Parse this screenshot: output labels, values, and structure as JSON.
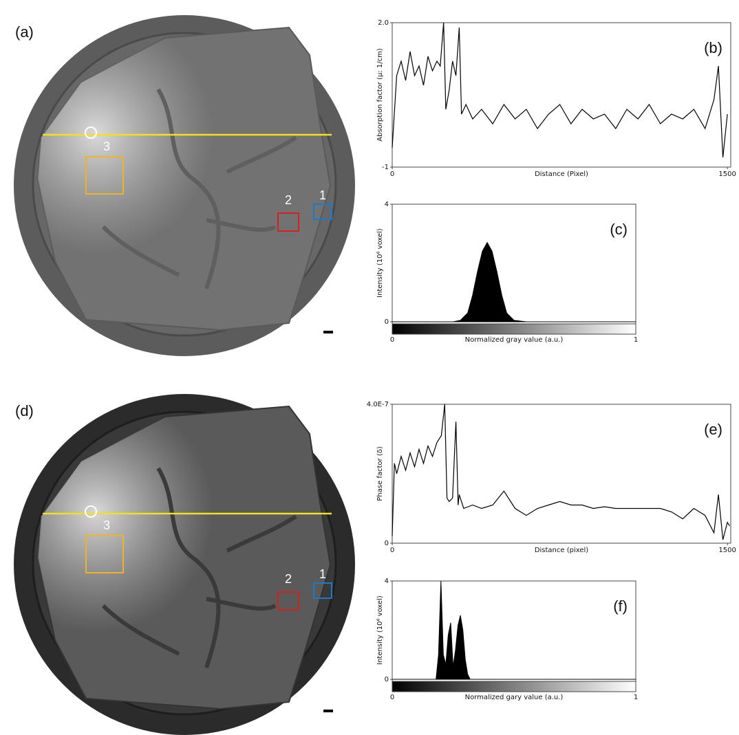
{
  "figure": {
    "top_image": {
      "label": "(a)",
      "roi_labels": [
        "1",
        "2",
        "3"
      ]
    },
    "bottom_image": {
      "label": "(d)",
      "roi_labels": [
        "1",
        "2",
        "3"
      ]
    }
  },
  "chart_data": [
    {
      "type": "line",
      "panel_label": "(b)",
      "y_label": "Absorption factor (μ: 1/cm)",
      "x_label": "Distance (Pixel)",
      "color": "#000000",
      "x": [
        0,
        20,
        40,
        60,
        80,
        100,
        120,
        140,
        160,
        180,
        200,
        215,
        230,
        240,
        255,
        270,
        285,
        300,
        310,
        330,
        360,
        400,
        450,
        500,
        550,
        600,
        650,
        700,
        750,
        800,
        850,
        900,
        950,
        1000,
        1050,
        1100,
        1150,
        1200,
        1250,
        1300,
        1350,
        1400,
        1440,
        1460,
        1480,
        1500
      ],
      "values": [
        -0.6,
        0.9,
        1.2,
        0.8,
        1.4,
        0.9,
        1.1,
        0.7,
        1.3,
        1.0,
        1.2,
        1.1,
        2.0,
        0.2,
        0.6,
        1.2,
        0.9,
        1.9,
        0.1,
        0.3,
        0.0,
        0.2,
        -0.1,
        0.3,
        0.0,
        0.2,
        -0.2,
        0.1,
        0.3,
        -0.1,
        0.2,
        0.0,
        0.1,
        -0.2,
        0.2,
        0.0,
        0.3,
        -0.1,
        0.1,
        0.0,
        0.2,
        -0.2,
        0.4,
        1.1,
        -0.8,
        0.1
      ],
      "xlim": [
        0,
        1515
      ],
      "ylim": [
        -1,
        2
      ],
      "xticks": [
        0,
        1500
      ],
      "yticks": [
        {
          "value": 2,
          "label": "2.0"
        },
        -1
      ]
    },
    {
      "type": "area",
      "panel_label": "(c)",
      "y_label": "Intensity (10⁶ voxel)",
      "x_label": "Normalized gray value (a.u.)",
      "color": "#000000",
      "x": [
        0,
        0.25,
        0.28,
        0.31,
        0.33,
        0.35,
        0.37,
        0.39,
        0.41,
        0.43,
        0.45,
        0.47,
        0.5,
        0.55,
        1
      ],
      "values": [
        0,
        0,
        0.05,
        0.3,
        0.9,
        1.7,
        2.4,
        2.7,
        2.4,
        1.7,
        0.9,
        0.3,
        0.05,
        0,
        0
      ],
      "xlim": [
        0,
        1
      ],
      "ylim": [
        0,
        4
      ],
      "xticks": [
        0,
        1
      ],
      "yticks": [
        0,
        4
      ]
    },
    {
      "type": "line",
      "panel_label": "(e)",
      "y_label": "Phase factor (δ)",
      "x_label": "Distance (pixel)",
      "color": "#000000",
      "x": [
        0,
        10,
        20,
        40,
        60,
        80,
        100,
        120,
        140,
        160,
        180,
        200,
        220,
        235,
        245,
        255,
        270,
        285,
        295,
        300,
        320,
        360,
        400,
        450,
        500,
        550,
        600,
        650,
        700,
        750,
        800,
        850,
        900,
        950,
        1000,
        1050,
        1100,
        1150,
        1200,
        1250,
        1300,
        1350,
        1400,
        1440,
        1460,
        1480,
        1500,
        1510
      ],
      "values": [
        2e-08,
        2.3e-07,
        2e-07,
        2.5e-07,
        2.1e-07,
        2.6e-07,
        2.2e-07,
        2.7e-07,
        2.3e-07,
        2.8e-07,
        2.5e-07,
        2.9e-07,
        3.1e-07,
        4e-07,
        1.3e-07,
        1.2e-07,
        1.3e-07,
        3.5e-07,
        1.1e-07,
        1.4e-07,
        1e-07,
        1.1e-07,
        1e-07,
        1.1e-07,
        1.5e-07,
        1e-07,
        8e-08,
        1e-07,
        1.1e-07,
        1.2e-07,
        1.1e-07,
        1.1e-07,
        1e-07,
        1.05e-07,
        1e-07,
        1e-07,
        1e-07,
        1e-07,
        1e-07,
        9e-08,
        7e-08,
        1e-07,
        8e-08,
        3e-08,
        1.4e-07,
        1e-08,
        6e-08,
        5e-08
      ],
      "xlim": [
        0,
        1515
      ],
      "ylim": [
        0,
        4e-07
      ],
      "xticks": [
        0,
        1500
      ],
      "yticks": [
        {
          "value": 4e-07,
          "label": "4.0E-7"
        },
        0
      ]
    },
    {
      "type": "area",
      "panel_label": "(f)",
      "y_label": "Intensity (10⁶ voxel)",
      "x_label": "Normalized gary value (a.u.)",
      "color": "#000000",
      "x": [
        0,
        0.18,
        0.19,
        0.2,
        0.205,
        0.21,
        0.22,
        0.23,
        0.24,
        0.25,
        0.26,
        0.27,
        0.28,
        0.29,
        0.3,
        0.31,
        0.32,
        1
      ],
      "values": [
        0,
        0,
        1.0,
        4.0,
        2.5,
        1.0,
        0.6,
        1.8,
        2.3,
        0.5,
        1.2,
        2.2,
        2.6,
        2.0,
        0.8,
        0.2,
        0,
        0
      ],
      "xlim": [
        0,
        1
      ],
      "ylim": [
        0,
        4
      ],
      "xticks": [
        0,
        1
      ],
      "yticks": [
        0,
        4
      ]
    }
  ]
}
